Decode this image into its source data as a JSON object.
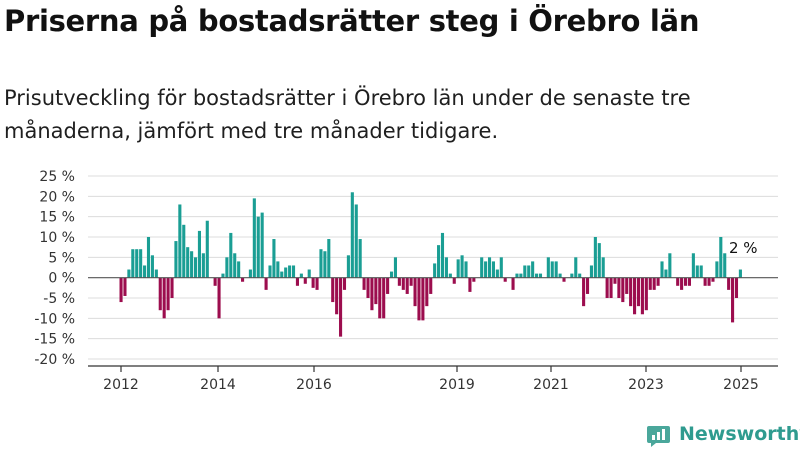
{
  "title": "Priserna på bostadsrätter steg i Örebro län",
  "subtitle": "Prisutveckling för bostadsrätter i Örebro län under de senaste tre månaderna, jämfört med tre månader tidigare.",
  "brand": "Newsworthy",
  "colors": {
    "positive": "#1a9e94",
    "negative": "#9c0d4e",
    "grid": "#dcdcdc",
    "axis": "#333333",
    "brand": "#2f9b8f"
  },
  "chart_data": {
    "type": "bar",
    "xlabel": "",
    "ylabel": "",
    "ylim": [
      -20,
      25
    ],
    "y_ticks": [
      25,
      20,
      15,
      10,
      5,
      0,
      -5,
      -10,
      -15,
      -20
    ],
    "y_tick_labels": [
      "25 %",
      "20 %",
      "15 %",
      "10 %",
      "5 %",
      "0 %",
      "-5 %",
      "-10 %",
      "-15 %",
      "-20 %"
    ],
    "x_tick_labels": [
      "2012",
      "2014",
      "2016",
      "2019",
      "2021",
      "2023",
      "2025"
    ],
    "grid": true,
    "last_value_label": "2 %",
    "series": [
      {
        "unit": "%",
        "values": [
          -6,
          -4.5,
          2,
          7,
          7,
          7,
          3,
          10,
          5.5,
          2,
          -8,
          -10,
          -8,
          -5,
          9,
          18,
          13,
          7.5,
          6.5,
          5,
          11.5,
          6,
          14,
          0,
          -2,
          -10,
          1,
          5,
          11,
          6,
          4,
          -1,
          0,
          2,
          19.5,
          15,
          16,
          -3,
          3,
          9.5,
          4,
          1.5,
          2.5,
          3,
          3,
          -2,
          1,
          -1.5,
          2,
          -2.5,
          -3,
          7,
          6.5,
          9.5,
          -6,
          -9,
          -14.5,
          -3,
          5.5,
          21,
          18,
          9.5,
          -3,
          -5,
          -8,
          -6.5,
          -10,
          -10,
          -4,
          1.5,
          5,
          -2,
          -3,
          -4,
          -2,
          -7,
          -10.5,
          -10.5,
          -7,
          -4,
          3.5,
          8,
          11,
          5,
          1,
          -1.5,
          4.5,
          5.5,
          4,
          -3.5,
          -1,
          0,
          5,
          4,
          5,
          4,
          2,
          5,
          -1,
          0,
          -3,
          1,
          1,
          3,
          3,
          4,
          1,
          1,
          0,
          5,
          4,
          4,
          1,
          -1,
          0,
          1,
          5,
          1,
          -7,
          -4,
          3,
          10,
          8.5,
          5,
          -5,
          -5,
          -1.5,
          -5,
          -6,
          -4,
          -7,
          -9,
          -7,
          -9,
          -8,
          -3,
          -3,
          -2,
          4,
          2,
          6,
          0,
          -2,
          -3,
          -2,
          -2,
          6,
          3,
          3,
          -2,
          -2,
          -1,
          4,
          10,
          6,
          -3,
          -11,
          -5,
          2
        ]
      }
    ]
  }
}
